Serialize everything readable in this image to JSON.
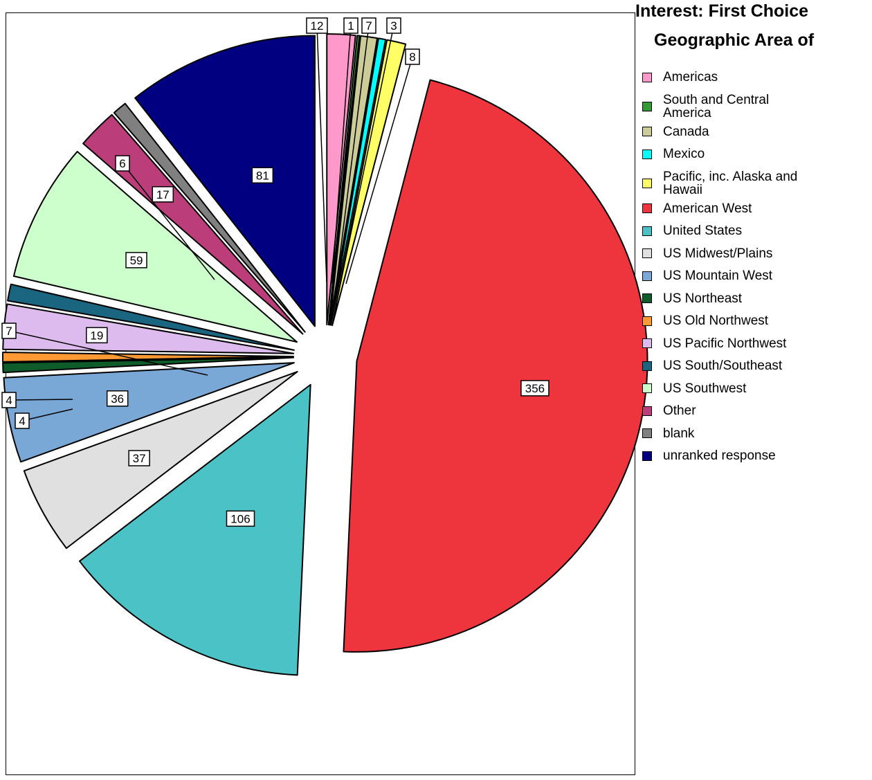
{
  "chart_data": {
    "type": "pie",
    "title_lines": [
      "Interest: First Choice",
      "Geographic Area of"
    ],
    "slices": [
      {
        "label": "Americas",
        "value": 12,
        "color": "#ff99cc"
      },
      {
        "label": "South and Central America",
        "value": 1,
        "color": "#339933"
      },
      {
        "label": "Canada",
        "value": 7,
        "color": "#cccc99"
      },
      {
        "label": "Mexico",
        "value": 3,
        "color": "#00ffff"
      },
      {
        "label": "Pacific, inc. Alaska and Hawaii",
        "value": 8,
        "color": "#ffff66"
      },
      {
        "label": "American West",
        "value": 356,
        "color": "#ee343c"
      },
      {
        "label": "United States",
        "value": 106,
        "color": "#4bc3c6"
      },
      {
        "label": "US Midwest/Plains",
        "value": 37,
        "color": "#e0e0e0"
      },
      {
        "label": "US Mountain West",
        "value": 36,
        "color": "#7aa8d6"
      },
      {
        "label": "US Northeast",
        "value": 4,
        "color": "#0d5c2a"
      },
      {
        "label": "US Old Northwest",
        "value": 4,
        "color": "#ff9933"
      },
      {
        "label": "US Pacific Northwest",
        "value": 19,
        "color": "#ddbbee"
      },
      {
        "label": "US South/Southeast",
        "value": 7,
        "color": "#1a6680"
      },
      {
        "label": "US Southwest",
        "value": 59,
        "color": "#ccffcc"
      },
      {
        "label": "Other",
        "value": 17,
        "color": "#bb3d7a"
      },
      {
        "label": "blank",
        "value": 6,
        "color": "#808080"
      },
      {
        "label": "unranked response",
        "value": 81,
        "color": "#000080"
      }
    ],
    "legend_position": "right"
  }
}
